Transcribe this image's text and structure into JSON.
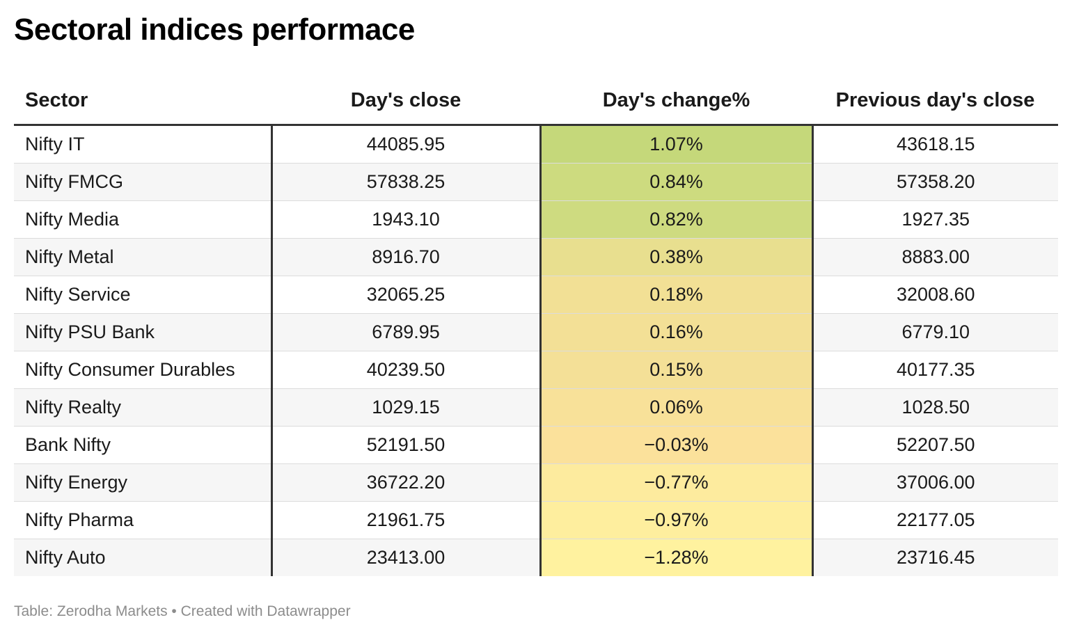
{
  "title": "Sectoral indices performace",
  "footer": "Table: Zerodha Markets • Created with Datawrapper",
  "chart_data": {
    "type": "table",
    "columns": [
      "Sector",
      "Day's close",
      "Day's change%",
      "Previous day's close"
    ],
    "rows": [
      {
        "sector": "Nifty IT",
        "close": "44085.95",
        "change": "1.07%",
        "prev": "43618.15",
        "change_value": 1.07,
        "color": "#c5d87a"
      },
      {
        "sector": "Nifty FMCG",
        "close": "57838.25",
        "change": "0.84%",
        "prev": "57358.20",
        "change_value": 0.84,
        "color": "#cddb7f"
      },
      {
        "sector": "Nifty Media",
        "close": "1943.10",
        "change": "0.82%",
        "prev": "1927.35",
        "change_value": 0.82,
        "color": "#cedb80"
      },
      {
        "sector": "Nifty Metal",
        "close": "8916.70",
        "change": "0.38%",
        "prev": "8883.00",
        "change_value": 0.38,
        "color": "#e8df8f"
      },
      {
        "sector": "Nifty Service",
        "close": "32065.25",
        "change": "0.18%",
        "prev": "32008.60",
        "change_value": 0.18,
        "color": "#f2e095"
      },
      {
        "sector": "Nifty PSU Bank",
        "close": "6789.95",
        "change": "0.16%",
        "prev": "6779.10",
        "change_value": 0.16,
        "color": "#f3e096"
      },
      {
        "sector": "Nifty Consumer Durables",
        "close": "40239.50",
        "change": "0.15%",
        "prev": "40177.35",
        "change_value": 0.15,
        "color": "#f4e097"
      },
      {
        "sector": "Nifty Realty",
        "close": "1029.15",
        "change": "0.06%",
        "prev": "1028.50",
        "change_value": 0.06,
        "color": "#f8e199"
      },
      {
        "sector": "Bank Nifty",
        "close": "52191.50",
        "change": "−0.03%",
        "prev": "52207.50",
        "change_value": -0.03,
        "color": "#fbe19b"
      },
      {
        "sector": "Nifty Energy",
        "close": "36722.20",
        "change": "−0.77%",
        "prev": "37006.00",
        "change_value": -0.77,
        "color": "#fdeb9e"
      },
      {
        "sector": "Nifty Pharma",
        "close": "21961.75",
        "change": "−0.97%",
        "prev": "22177.05",
        "change_value": -0.97,
        "color": "#feee9e"
      },
      {
        "sector": "Nifty Auto",
        "close": "23413.00",
        "change": "−1.28%",
        "prev": "23716.45",
        "change_value": -1.28,
        "color": "#fff29f"
      }
    ]
  }
}
